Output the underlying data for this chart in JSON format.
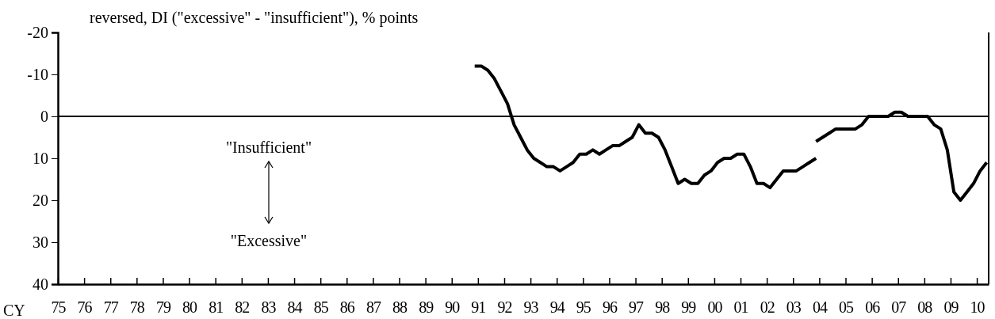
{
  "chart_data": {
    "type": "line",
    "ylabel": "reversed, DI (\"excessive\" - \"insufficient\"), % points",
    "xlabel": "CY",
    "xlim": [
      1975,
      2010.45
    ],
    "xticks": [
      {
        "value": 1975,
        "label": "75"
      },
      {
        "value": 1976,
        "label": "76"
      },
      {
        "value": 1977,
        "label": "77"
      },
      {
        "value": 1978,
        "label": "78"
      },
      {
        "value": 1979,
        "label": "79"
      },
      {
        "value": 1980,
        "label": "80"
      },
      {
        "value": 1981,
        "label": "81"
      },
      {
        "value": 1982,
        "label": "82"
      },
      {
        "value": 1983,
        "label": "83"
      },
      {
        "value": 1984,
        "label": "84"
      },
      {
        "value": 1985,
        "label": "85"
      },
      {
        "value": 1986,
        "label": "86"
      },
      {
        "value": 1987,
        "label": "87"
      },
      {
        "value": 1988,
        "label": "88"
      },
      {
        "value": 1989,
        "label": "89"
      },
      {
        "value": 1990,
        "label": "90"
      },
      {
        "value": 1991,
        "label": "91"
      },
      {
        "value": 1992,
        "label": "92"
      },
      {
        "value": 1993,
        "label": "93"
      },
      {
        "value": 1994,
        "label": "94"
      },
      {
        "value": 1995,
        "label": "95"
      },
      {
        "value": 1996,
        "label": "96"
      },
      {
        "value": 1997,
        "label": "97"
      },
      {
        "value": 1998,
        "label": "98"
      },
      {
        "value": 1999,
        "label": "99"
      },
      {
        "value": 2000,
        "label": "00"
      },
      {
        "value": 2001,
        "label": "01"
      },
      {
        "value": 2002,
        "label": "02"
      },
      {
        "value": 2003,
        "label": "03"
      },
      {
        "value": 2004,
        "label": "04"
      },
      {
        "value": 2005,
        "label": "05"
      },
      {
        "value": 2006,
        "label": "06"
      },
      {
        "value": 2007,
        "label": "07"
      },
      {
        "value": 2008,
        "label": "08"
      },
      {
        "value": 2009,
        "label": "09"
      },
      {
        "value": 2010,
        "label": "10"
      }
    ],
    "ylim": [
      40,
      -20
    ],
    "yticks": [
      -20,
      -10,
      0,
      10,
      20,
      30,
      40
    ],
    "grid": false,
    "marker": "none",
    "line_style": "solid",
    "ref_lines": [
      {
        "axis": "y",
        "value": 0,
        "color": "#000000"
      }
    ],
    "annotations": [
      "\"Insufficient\"",
      "\"Excessive\""
    ],
    "series": [
      {
        "color": "#000000",
        "x": [
          1990.875,
          1991.125,
          1991.375,
          1991.625,
          1991.875,
          1992.125,
          1992.375,
          1992.625,
          1992.875,
          1993.125,
          1993.375,
          1993.625,
          1993.875,
          1994.125,
          1994.375,
          1994.625,
          1994.875,
          1995.125,
          1995.375,
          1995.625,
          1995.875,
          1996.125,
          1996.375,
          1996.625,
          1996.875,
          1997.125,
          1997.375,
          1997.625,
          1997.875,
          1998.125,
          1998.375,
          1998.625,
          1998.875,
          1999.125,
          1999.375,
          1999.625,
          1999.875,
          2000.125,
          2000.375,
          2000.625,
          2000.875,
          2001.125,
          2001.375,
          2001.625,
          2001.875,
          2002.125,
          2002.375,
          2002.625,
          2002.875,
          2003.125,
          2003.375,
          2003.625,
          2003.875
        ],
        "values": [
          -12,
          -12,
          -11,
          -9,
          -6,
          -3,
          2,
          5,
          8,
          10,
          11,
          12,
          12,
          13,
          12,
          11,
          9,
          9,
          8,
          9,
          8,
          7,
          7,
          6,
          5,
          2,
          4,
          4,
          5,
          8,
          12,
          16,
          15,
          16,
          16,
          14,
          13,
          11,
          10,
          10,
          9,
          9,
          12,
          16,
          16,
          17,
          15,
          13,
          13,
          13,
          12,
          11,
          10
        ]
      },
      {
        "color": "#000000",
        "x": [
          2003.875,
          2004.125,
          2004.375,
          2004.625,
          2004.875,
          2005.125,
          2005.375,
          2005.625,
          2005.875,
          2006.125,
          2006.375,
          2006.625,
          2006.875,
          2007.125,
          2007.375,
          2007.625,
          2007.875,
          2008.125,
          2008.375,
          2008.625,
          2008.875,
          2009.125,
          2009.375,
          2009.625,
          2009.875,
          2010.125,
          2010.375
        ],
        "values": [
          6,
          5,
          4,
          3,
          3,
          3,
          3,
          2,
          0,
          0,
          0,
          0,
          -1,
          -1,
          0,
          0,
          0,
          0,
          2,
          3,
          8,
          18,
          20,
          18,
          16,
          13,
          11
        ]
      }
    ]
  }
}
